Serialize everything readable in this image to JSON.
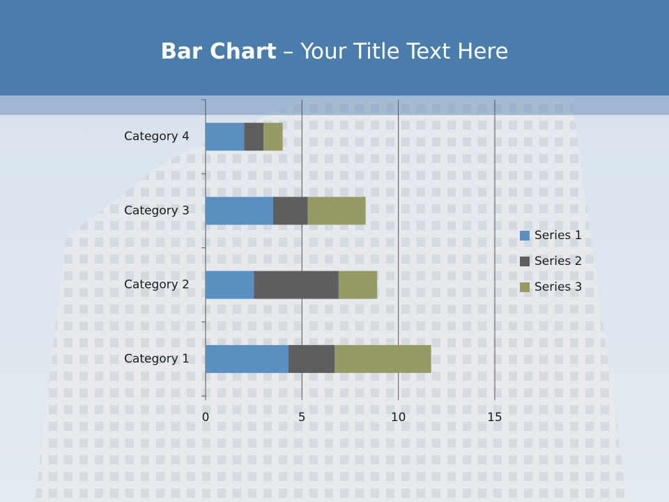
{
  "chart_data": {
    "type": "stacked-bar-horizontal",
    "title": {
      "bold": "Bar Chart",
      "text": "– Your Title Text Here"
    },
    "categories": [
      "Category 1",
      "Category 2",
      "Category 3",
      "Category 4"
    ],
    "series": [
      {
        "name": "Series 1",
        "color": "#5b8fc2",
        "values": [
          4.3,
          2.5,
          3.5,
          2.0
        ]
      },
      {
        "name": "Series 2",
        "color": "#5e5e5e",
        "values": [
          2.4,
          4.4,
          1.8,
          1.0
        ]
      },
      {
        "name": "Series 3",
        "color": "#979a66",
        "values": [
          5.0,
          2.0,
          3.0,
          1.0
        ]
      }
    ],
    "xlim": [
      0,
      15
    ],
    "xticks": [
      0,
      5,
      10,
      15
    ],
    "grid": true,
    "legend": "right"
  }
}
